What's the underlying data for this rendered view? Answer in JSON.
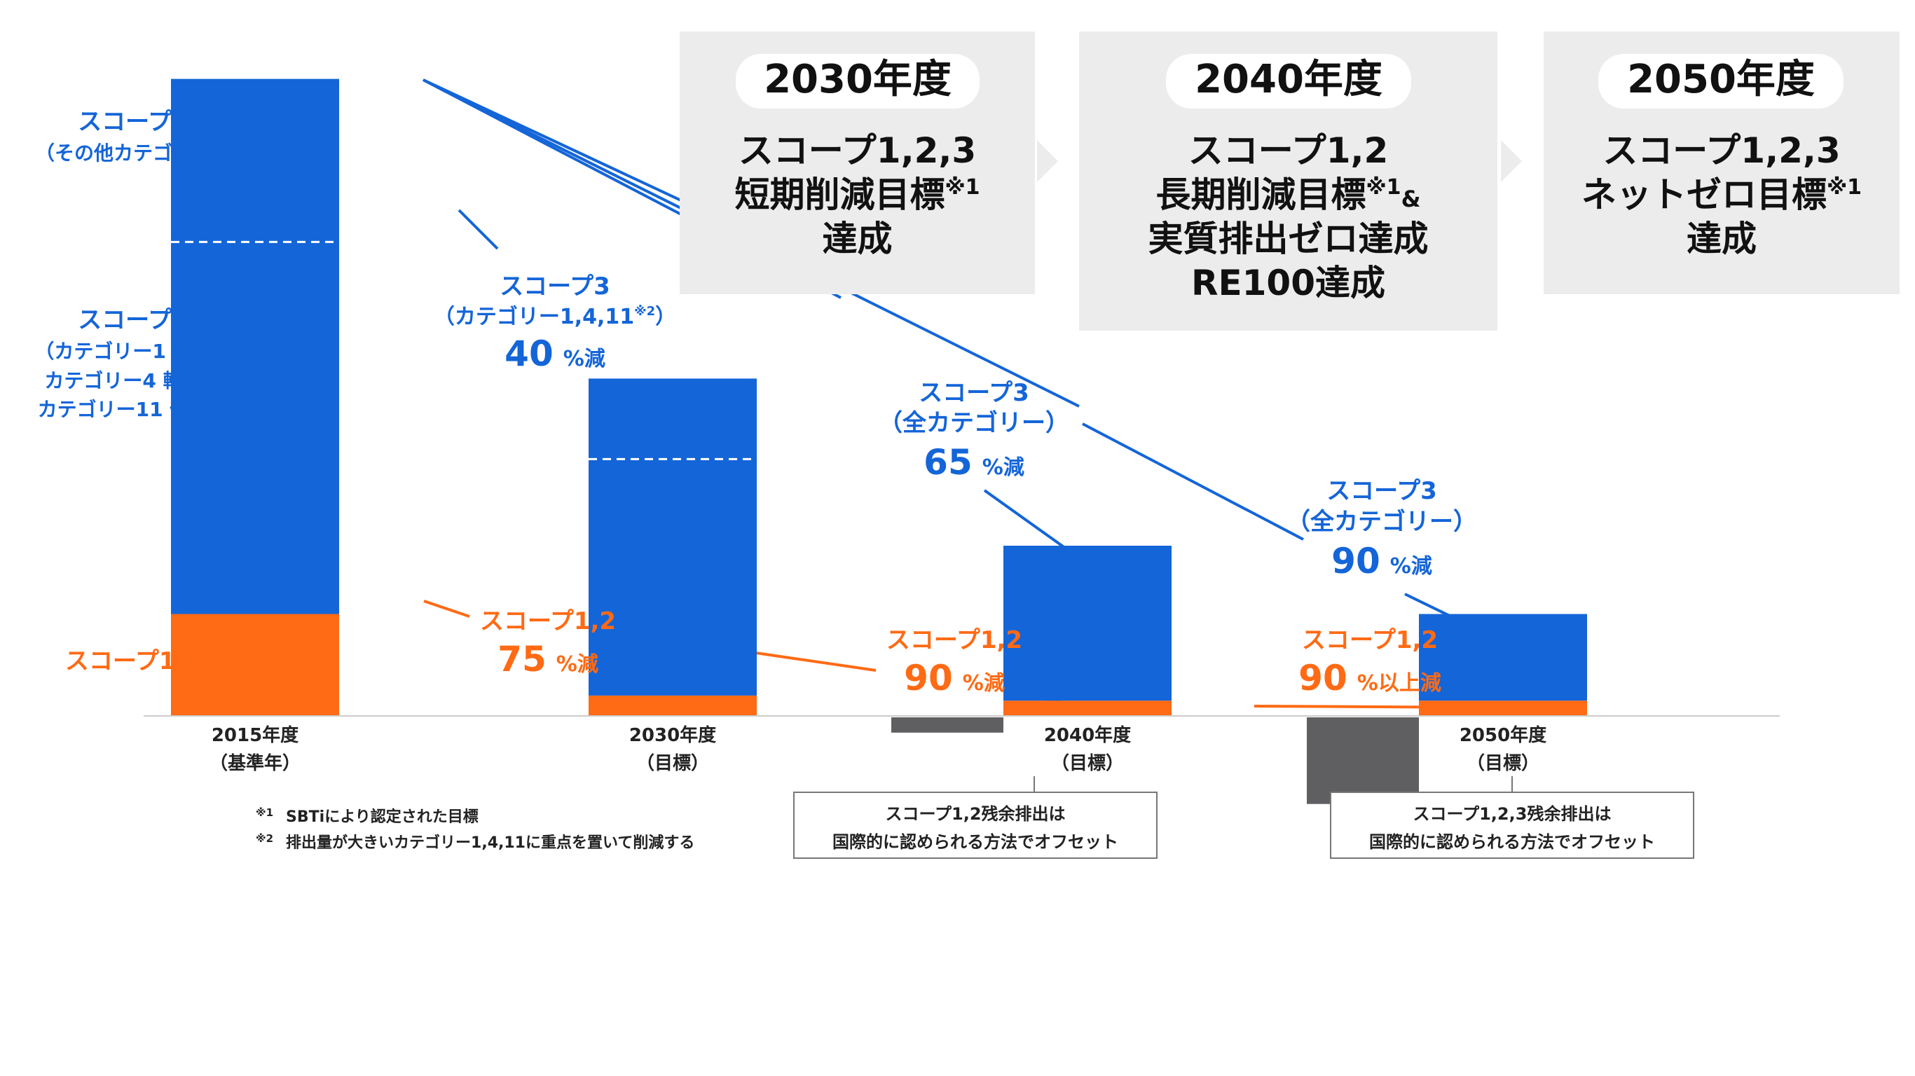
{
  "colors": {
    "scope3": "#1465d8",
    "scope12": "#ff6a14",
    "offset": "#5f5f62",
    "box_bg": "#ececec",
    "axis": "#cccccc"
  },
  "chart_data": {
    "type": "bar",
    "stacked": true,
    "title": "",
    "xlabel": "",
    "ylabel": "",
    "categories": [
      {
        "line1": "2015年度",
        "line2": "（基準年）"
      },
      {
        "line1": "2030年度",
        "line2": "（目標）"
      },
      {
        "line1": "2040年度",
        "line2": "（目標）"
      },
      {
        "line1": "2050年度",
        "line2": "（目標）"
      }
    ],
    "series": [
      {
        "name": "スコープ1,2",
        "values": [
          100,
          20,
          15,
          15
        ],
        "color": "#ff6a14"
      },
      {
        "name": "スコープ3",
        "values": [
          525,
          311,
          152,
          85
        ],
        "color": "#1465d8"
      },
      {
        "name": "オフセット",
        "values": [
          0,
          0,
          -15,
          -85
        ],
        "color": "#5f5f62"
      }
    ],
    "scope3_split_from_top": [
      160,
      79,
      null,
      null
    ],
    "ylim": [
      -100,
      625
    ],
    "grid": false,
    "legend": "none"
  },
  "left_labels": {
    "scope3_other": {
      "line1": "スコープ3",
      "line2": "（その他カテゴリー）"
    },
    "scope3_main": {
      "line1": "スコープ3",
      "line2": "（カテゴリー1 調達、",
      "line3": "カテゴリー4 輸送、",
      "line4": "カテゴリー11 使用）"
    },
    "scope12": "スコープ1,2"
  },
  "annotations": {
    "s3_40": {
      "line1": "スコープ3",
      "line2": "（カテゴリー1,4,11",
      "line2_mark": "※2",
      "line2_end": "）",
      "num": "40",
      "unit": "%減"
    },
    "s3_65": {
      "line1": "スコープ3",
      "line2": "（全カテゴリー）",
      "num": "65",
      "unit": "%減"
    },
    "s3_90": {
      "line1": "スコープ3",
      "line2": "（全カテゴリー）",
      "num": "90",
      "unit": "%減"
    },
    "s12_75": {
      "line1": "スコープ1,2",
      "num": "75",
      "unit": "%減"
    },
    "s12_90": {
      "line1": "スコープ1,2",
      "num": "90",
      "unit": "%減"
    },
    "s12_90plus": {
      "line1": "スコープ1,2",
      "num": "90",
      "unit": "%以上減"
    }
  },
  "goals": [
    {
      "year": "2030年度",
      "line1": "スコープ1,2,3",
      "line2": "短期削減目標",
      "line2_sup": "※1",
      "line3": "達成",
      "line4": ""
    },
    {
      "year": "2040年度",
      "line1": "スコープ1,2",
      "line2": "長期削減目標",
      "line2_sup": "※1",
      "line2_end": "&",
      "line3": "実質排出ゼロ達成",
      "line4": "RE100達成"
    },
    {
      "year": "2050年度",
      "line1": "スコープ1,2,3",
      "line2": "ネットゼロ目標",
      "line2_sup": "※1",
      "line3": "達成",
      "line4": ""
    }
  ],
  "offset_notes": [
    {
      "line1": "スコープ1,2残余排出は",
      "line2": "国際的に認められる方法でオフセット"
    },
    {
      "line1": "スコープ1,2,3残余排出は",
      "line2": "国際的に認められる方法でオフセット"
    }
  ],
  "footnotes": [
    {
      "mark": "※1",
      "text": "SBTiにより認定された目標"
    },
    {
      "mark": "※2",
      "text": "排出量が大きいカテゴリー1,4,11に重点を置いて削減する"
    }
  ]
}
